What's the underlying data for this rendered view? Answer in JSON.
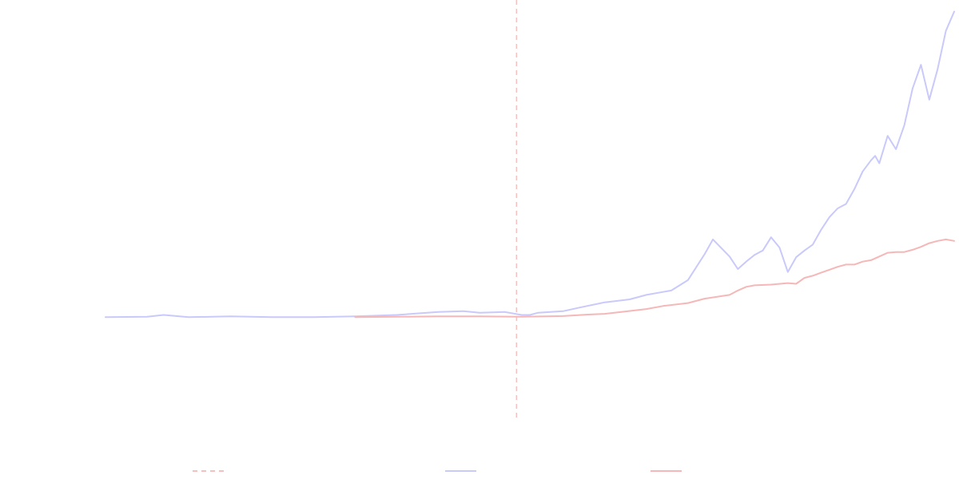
{
  "chart_data": {
    "type": "line",
    "title": "",
    "xlabel": "",
    "ylabel": "",
    "grid": false,
    "axes_visible": false,
    "x_range": [
      0,
      102
    ],
    "y_range": [
      -14,
      42
    ],
    "legend_placement": "bottom",
    "legend": [
      {
        "key": "divider",
        "style": "dashed",
        "color": "#f4c0c0"
      },
      {
        "key": "blue",
        "style": "solid",
        "color": "#c9c9fb"
      },
      {
        "key": "red",
        "style": "solid",
        "color": "#f5b7b7"
      }
    ],
    "divider_x": 49.4,
    "series": [
      {
        "key": "blue",
        "color": "#c9c9fb",
        "x": [
          0,
          5,
          7,
          10,
          15,
          20,
          25,
          30,
          35,
          40,
          43,
          45,
          48,
          50,
          51,
          52,
          55,
          57,
          60,
          63,
          65,
          67,
          68,
          70,
          72,
          73,
          75,
          76,
          77,
          78,
          79,
          80,
          81,
          82,
          83,
          84,
          85,
          86,
          87,
          88,
          89,
          90,
          91,
          92,
          92.5,
          93,
          94,
          95,
          96,
          97,
          98,
          99,
          100,
          101,
          102
        ],
        "values": [
          0,
          0.05,
          0.3,
          0,
          0.1,
          0,
          0,
          0.1,
          0.3,
          0.7,
          0.8,
          0.6,
          0.7,
          0.3,
          0.3,
          0.6,
          0.8,
          1.3,
          2.0,
          2.4,
          3.0,
          3.4,
          3.6,
          5.0,
          8.5,
          10.5,
          8.2,
          6.5,
          7.5,
          8.4,
          9.0,
          10.8,
          9.4,
          6.1,
          8.1,
          9.0,
          9.8,
          11.8,
          13.5,
          14.7,
          15.3,
          17.3,
          19.7,
          21.2,
          21.8,
          20.8,
          24.5,
          22.7,
          25.9,
          30.9,
          34.1,
          29.4,
          33.5,
          38.7,
          41.3
        ]
      },
      {
        "key": "red",
        "color": "#f5b7b7",
        "x": [
          30,
          40,
          45,
          50,
          55,
          58,
          60,
          62,
          65,
          67,
          70,
          72,
          75,
          76,
          77,
          78,
          80,
          82,
          83,
          84,
          85,
          86,
          87,
          88,
          89,
          90,
          91,
          92,
          93,
          94,
          95,
          96,
          97,
          98,
          99,
          100,
          101,
          102
        ],
        "values": [
          0,
          0.1,
          0.1,
          0.05,
          0.15,
          0.35,
          0.45,
          0.7,
          1.1,
          1.5,
          1.9,
          2.5,
          3.0,
          3.6,
          4.1,
          4.3,
          4.4,
          4.6,
          4.5,
          5.3,
          5.6,
          6.0,
          6.4,
          6.8,
          7.1,
          7.1,
          7.5,
          7.7,
          8.2,
          8.7,
          8.8,
          8.8,
          9.1,
          9.5,
          10.0,
          10.3,
          10.5,
          10.3
        ]
      }
    ]
  }
}
